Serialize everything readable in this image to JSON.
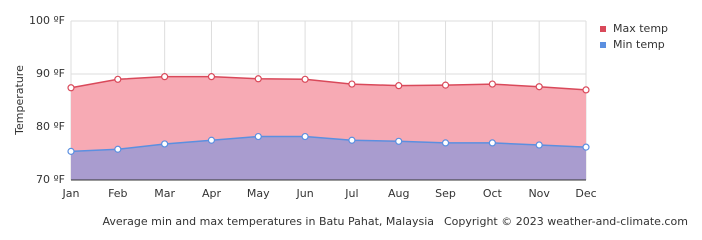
{
  "chart_data": {
    "type": "area",
    "y_axis_label": "Temperature",
    "caption": "Average min and max temperatures in Batu Pahat, Malaysia",
    "copyright": "Copyright © 2023  weather-and-climate.com",
    "categories": [
      "Jan",
      "Feb",
      "Mar",
      "Apr",
      "May",
      "Jun",
      "Jul",
      "Aug",
      "Sep",
      "Oct",
      "Nov",
      "Dec"
    ],
    "series": [
      {
        "name": "Max temp",
        "color": "#d9495a",
        "fill": "#f7aab4",
        "values": [
          87.4,
          89.0,
          89.5,
          89.5,
          89.1,
          89.0,
          88.1,
          87.8,
          87.9,
          88.1,
          87.6,
          87.0
        ]
      },
      {
        "name": "Min temp",
        "color": "#5b8fe0",
        "fill": "#a99ccf",
        "values": [
          75.4,
          75.8,
          76.8,
          77.5,
          78.2,
          78.2,
          77.5,
          77.3,
          77.0,
          77.0,
          76.6,
          76.2
        ]
      }
    ],
    "ylim": [
      70,
      100
    ],
    "yticks": [
      {
        "value": 70,
        "label": "70 ºF"
      },
      {
        "value": 80,
        "label": "80 ºF"
      },
      {
        "value": 90,
        "label": "90 ºF"
      },
      {
        "value": 100,
        "label": "100 ºF"
      }
    ],
    "grid": true,
    "legend": "top-right"
  }
}
